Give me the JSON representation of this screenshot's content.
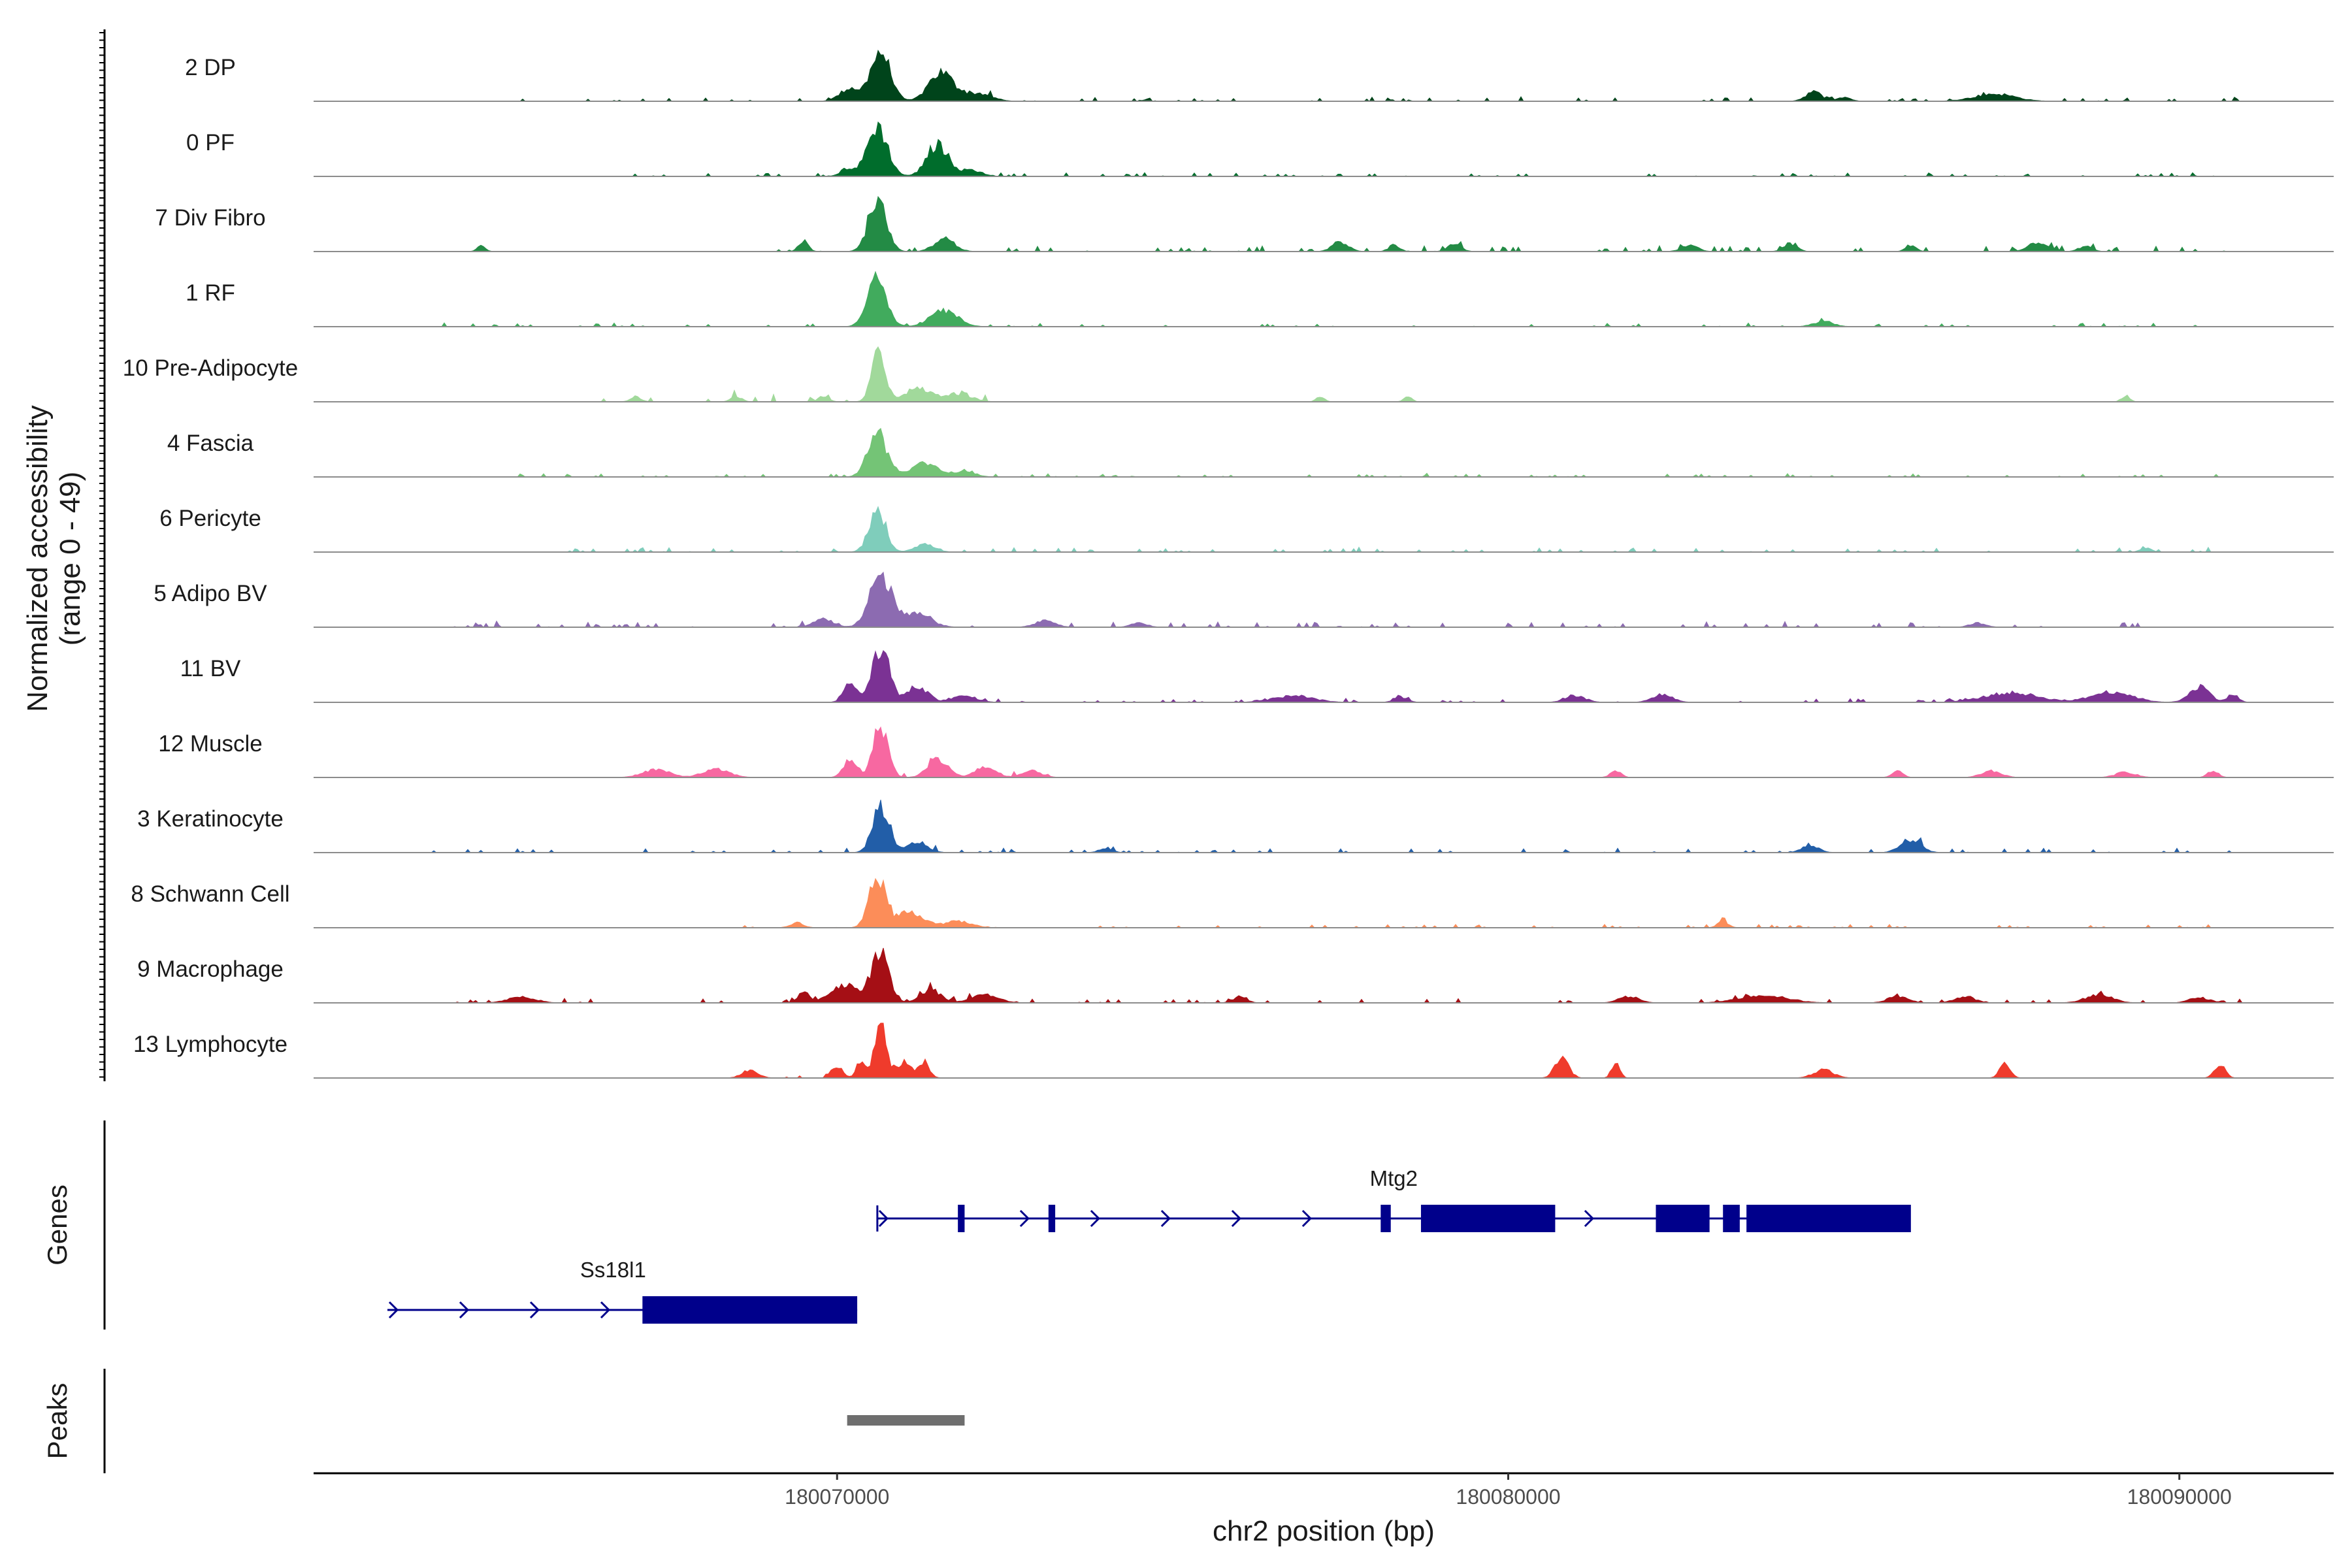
{
  "chart_data": {
    "type": "coverage",
    "xlabel": "chr2 position (bp)",
    "ylabel": "Normalized accessibility",
    "ylabel_range": "(range 0 - 49)",
    "xlim": [
      180062200,
      180092300
    ],
    "xticks": [
      {
        "value": 180070000,
        "label": "180070000"
      },
      {
        "value": 180080000,
        "label": "180080000"
      },
      {
        "value": 180090000,
        "label": "180090000"
      }
    ],
    "tracks": [
      {
        "name": "2 DP",
        "color": "#00441b",
        "peaks": [
          [
            180070650,
            0.95,
            140
          ],
          [
            180071550,
            0.55,
            180
          ],
          [
            180070200,
            0.25,
            150
          ],
          [
            180072100,
            0.15,
            200
          ],
          [
            180084550,
            0.18,
            120
          ],
          [
            180087250,
            0.14,
            300
          ],
          [
            180085000,
            0.08,
            100
          ]
        ],
        "noise": [
          180064500,
          180091000,
          0.05
        ]
      },
      {
        "name": "0 PF",
        "color": "#006d2c",
        "peaks": [
          [
            180070600,
            0.95,
            150
          ],
          [
            180071500,
            0.6,
            160
          ],
          [
            180070150,
            0.15,
            100
          ],
          [
            180072000,
            0.12,
            150
          ]
        ],
        "noise": [
          180066500,
          180090800,
          0.04
        ]
      },
      {
        "name": "7 Div Fibro",
        "color": "#238b45",
        "peaks": [
          [
            180070600,
            1.0,
            130
          ],
          [
            180071600,
            0.25,
            150
          ],
          [
            180069500,
            0.2,
            70
          ],
          [
            180064700,
            0.12,
            60
          ],
          [
            180077500,
            0.18,
            120
          ],
          [
            180078300,
            0.12,
            80
          ],
          [
            180079200,
            0.14,
            100
          ],
          [
            180082700,
            0.12,
            120
          ],
          [
            180084200,
            0.15,
            100
          ],
          [
            180086000,
            0.1,
            80
          ],
          [
            180087900,
            0.18,
            150
          ],
          [
            180088600,
            0.1,
            100
          ]
        ],
        "noise": [
          180069000,
          180090800,
          0.06
        ]
      },
      {
        "name": "1 RF",
        "color": "#41ab5d",
        "peaks": [
          [
            180070600,
            0.95,
            140
          ],
          [
            180071600,
            0.3,
            200
          ],
          [
            180084700,
            0.1,
            150
          ]
        ],
        "noise": [
          180063600,
          180090500,
          0.04
        ]
      },
      {
        "name": "10 Pre-Adipocyte",
        "color": "#a1d99b",
        "peaks": [
          [
            180070620,
            1.0,
            100
          ],
          [
            180071200,
            0.25,
            200
          ],
          [
            180067000,
            0.1,
            80
          ],
          [
            180068500,
            0.1,
            80
          ],
          [
            180069800,
            0.1,
            80
          ],
          [
            180071800,
            0.15,
            200
          ],
          [
            180077200,
            0.1,
            60
          ],
          [
            180078500,
            0.1,
            60
          ],
          [
            180089200,
            0.12,
            60
          ]
        ],
        "noise": [
          180066500,
          180072300,
          0.08
        ]
      },
      {
        "name": "4 Fascia",
        "color": "#74c476",
        "peaks": [
          [
            180070600,
            0.85,
            140
          ],
          [
            180071300,
            0.25,
            200
          ],
          [
            180071900,
            0.12,
            150
          ]
        ],
        "noise": [
          180064000,
          180090800,
          0.04
        ]
      },
      {
        "name": "6 Pericyte",
        "color": "#7fcdbb",
        "peaks": [
          [
            180070600,
            0.85,
            120
          ],
          [
            180071300,
            0.15,
            150
          ],
          [
            180089500,
            0.08,
            80
          ]
        ],
        "noise": [
          180066000,
          180090500,
          0.05
        ]
      },
      {
        "name": "5 Adipo BV",
        "color": "#8c6bb1",
        "peaks": [
          [
            180070650,
            1.0,
            160
          ],
          [
            180071200,
            0.25,
            200
          ],
          [
            180069800,
            0.15,
            150
          ],
          [
            180073100,
            0.12,
            150
          ],
          [
            180074500,
            0.08,
            120
          ],
          [
            180087000,
            0.08,
            120
          ]
        ],
        "noise": [
          180063700,
          180090000,
          0.06
        ]
      },
      {
        "name": "11 BV",
        "color": "#7b3294",
        "peaks": [
          [
            180070650,
            1.0,
            130
          ],
          [
            180071200,
            0.3,
            150
          ],
          [
            180070200,
            0.35,
            100
          ],
          [
            180071900,
            0.12,
            180
          ],
          [
            180076800,
            0.12,
            300
          ],
          [
            180078400,
            0.1,
            100
          ],
          [
            180081000,
            0.12,
            150
          ],
          [
            180082300,
            0.15,
            150
          ],
          [
            180087500,
            0.18,
            400
          ],
          [
            180089000,
            0.2,
            300
          ],
          [
            180090300,
            0.3,
            150
          ],
          [
            180090800,
            0.15,
            80
          ]
        ],
        "noise": [
          180070000,
          180091000,
          0.04
        ]
      },
      {
        "name": "12 Muscle",
        "color": "#f768a1",
        "peaks": [
          [
            180070650,
            1.0,
            110
          ],
          [
            180070200,
            0.35,
            100
          ],
          [
            180071500,
            0.35,
            150
          ],
          [
            180072200,
            0.2,
            150
          ],
          [
            180067300,
            0.15,
            200
          ],
          [
            180068200,
            0.15,
            200
          ],
          [
            180072900,
            0.12,
            150
          ],
          [
            180081600,
            0.12,
            80
          ],
          [
            180085800,
            0.12,
            80
          ],
          [
            180087200,
            0.12,
            150
          ],
          [
            180089200,
            0.1,
            150
          ],
          [
            180090500,
            0.12,
            80
          ]
        ],
        "noise": [
          180069900,
          180073200,
          0.05
        ]
      },
      {
        "name": "3 Keratinocyte",
        "color": "#225ea8",
        "peaks": [
          [
            180070650,
            0.9,
            120
          ],
          [
            180071200,
            0.2,
            150
          ],
          [
            180074000,
            0.08,
            100
          ],
          [
            180084500,
            0.15,
            120
          ],
          [
            180086000,
            0.25,
            150
          ]
        ],
        "noise": [
          180063500,
          180091000,
          0.05
        ]
      },
      {
        "name": "8 Schwann Cell",
        "color": "#fc8d59",
        "peaks": [
          [
            180070600,
            1.0,
            120
          ],
          [
            180071100,
            0.3,
            200
          ],
          [
            180071800,
            0.12,
            200
          ],
          [
            180069400,
            0.1,
            100
          ],
          [
            180083200,
            0.12,
            80
          ]
        ],
        "noise": [
          180068500,
          180090500,
          0.04
        ]
      },
      {
        "name": "9 Macrophage",
        "color": "#a50f15",
        "peaks": [
          [
            180070650,
            0.95,
            130
          ],
          [
            180070100,
            0.35,
            200
          ],
          [
            180069500,
            0.2,
            80
          ],
          [
            180071400,
            0.25,
            150
          ],
          [
            180072200,
            0.15,
            200
          ],
          [
            180065300,
            0.12,
            200
          ],
          [
            180076000,
            0.12,
            100
          ],
          [
            180081800,
            0.12,
            150
          ],
          [
            180083800,
            0.15,
            350
          ],
          [
            180085800,
            0.12,
            150
          ],
          [
            180086800,
            0.12,
            150
          ],
          [
            180088800,
            0.15,
            200
          ],
          [
            180090300,
            0.1,
            150
          ]
        ],
        "noise": [
          180064300,
          180091000,
          0.05
        ]
      },
      {
        "name": "13 Lymphocyte",
        "color": "#ef3b2c",
        "peaks": [
          [
            180070650,
            1.0,
            90
          ],
          [
            180070350,
            0.35,
            60
          ],
          [
            180070000,
            0.25,
            80
          ],
          [
            180071000,
            0.3,
            100
          ],
          [
            180071300,
            0.3,
            80
          ],
          [
            180068700,
            0.15,
            120
          ],
          [
            180080800,
            0.4,
            100
          ],
          [
            180081600,
            0.3,
            60
          ],
          [
            180084700,
            0.15,
            150
          ],
          [
            180087400,
            0.25,
            80
          ],
          [
            180090600,
            0.25,
            80
          ]
        ],
        "noise": [
          180068500,
          180071500,
          0.03
        ]
      }
    ],
    "genes": [
      {
        "name": "Mtg2",
        "strand": "+",
        "start": 180070600,
        "end": 180085800,
        "exons": [
          [
            180071800,
            180071900
          ],
          [
            180073150,
            180073250
          ],
          [
            180078100,
            180078250
          ],
          [
            180078700,
            180080700
          ],
          [
            180082200,
            180083000
          ],
          [
            180083200,
            180083450
          ],
          [
            180083550,
            180086000
          ]
        ]
      },
      {
        "name": "Ss18l1",
        "strand": "+",
        "start": 180063300,
        "end": 180070300,
        "exons": [
          [
            180067100,
            180070300
          ]
        ]
      }
    ],
    "peaks_track": {
      "title": "Peaks",
      "regions": [
        [
          180070150,
          180071900
        ]
      ]
    },
    "genes_track": {
      "title": "Genes"
    }
  },
  "colors": {
    "gene": "#00008b",
    "peak": "#6e6e6e",
    "baseline": "#8c8c8c",
    "axis": "#000000"
  }
}
